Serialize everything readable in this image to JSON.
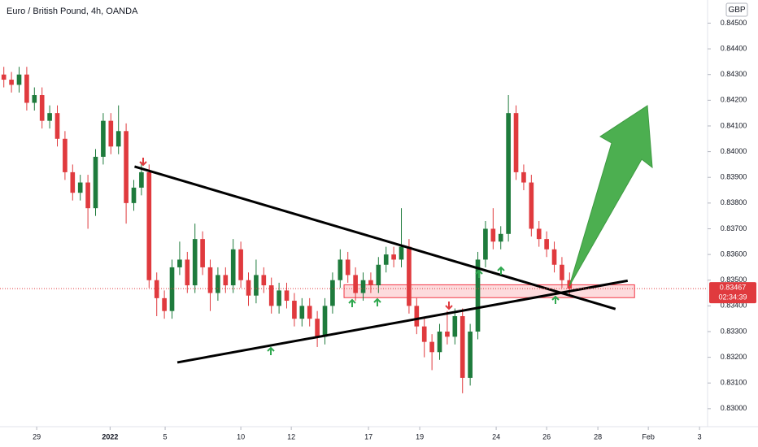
{
  "chart_data": {
    "type": "candlestick",
    "title": "Euro / British Pound, 4h, OANDA",
    "currency": "GBP",
    "last_price": 0.83467,
    "countdown": "02:34:39",
    "up_color": "#1e7b3c",
    "down_color": "#e03a3e",
    "xlim": [
      -0.5,
      92.05
    ],
    "ylim": [
      0.8293,
      0.8459
    ],
    "xticks": [
      {
        "value": 4.3,
        "label": "29"
      },
      {
        "value": 13.9,
        "label": "2022"
      },
      {
        "value": 21.1,
        "label": "5"
      },
      {
        "value": 31,
        "label": "10"
      },
      {
        "value": 37.6,
        "label": "12"
      },
      {
        "value": 47.7,
        "label": "17"
      },
      {
        "value": 54.4,
        "label": "19"
      },
      {
        "value": 64.4,
        "label": "24"
      },
      {
        "value": 71,
        "label": "26"
      },
      {
        "value": 77.7,
        "label": "28"
      },
      {
        "value": 84.3,
        "label": "Feb"
      },
      {
        "value": 91,
        "label": "3"
      }
    ],
    "yticks": [
      {
        "value": 0.83,
        "label": "0.83000"
      },
      {
        "value": 0.831,
        "label": "0.83100"
      },
      {
        "value": 0.832,
        "label": "0.83200"
      },
      {
        "value": 0.833,
        "label": "0.83300"
      },
      {
        "value": 0.834,
        "label": "0.83400"
      },
      {
        "value": 0.835,
        "label": "0.83500"
      },
      {
        "value": 0.836,
        "label": "0.83600"
      },
      {
        "value": 0.837,
        "label": "0.83700"
      },
      {
        "value": 0.838,
        "label": "0.83800"
      },
      {
        "value": 0.839,
        "label": "0.83900"
      },
      {
        "value": 0.84,
        "label": "0.84000"
      },
      {
        "value": 0.841,
        "label": "0.84100"
      },
      {
        "value": 0.842,
        "label": "0.84200"
      },
      {
        "value": 0.843,
        "label": "0.84300"
      },
      {
        "value": 0.844,
        "label": "0.84400"
      },
      {
        "value": 0.845,
        "label": "0.84500"
      }
    ],
    "open": [
      0.843,
      0.8428,
      0.8426,
      0.843,
      0.8419,
      0.8422,
      0.8412,
      0.8415,
      0.8405,
      0.8392,
      0.8384,
      0.8388,
      0.8378,
      0.8398,
      0.8412,
      0.8402,
      0.8408,
      0.838,
      0.8386,
      0.8392,
      0.835,
      0.8343,
      0.8338,
      0.8355,
      0.8358,
      0.8348,
      0.8366,
      0.8355,
      0.8345,
      0.8352,
      0.8348,
      0.8362,
      0.835,
      0.8344,
      0.8352,
      0.8348,
      0.834,
      0.8346,
      0.8342,
      0.8335,
      0.834,
      0.8335,
      0.8328,
      0.834,
      0.835,
      0.8358,
      0.8352,
      0.8345,
      0.835,
      0.8348,
      0.8356,
      0.836,
      0.8358,
      0.8363,
      0.834,
      0.8332,
      0.8326,
      0.8322,
      0.833,
      0.8328,
      0.8336,
      0.8312,
      0.833,
      0.8358,
      0.837,
      0.8365,
      0.8368,
      0.8415,
      0.8392,
      0.8388,
      0.837,
      0.8366,
      0.8362,
      0.8356,
      0.835
    ],
    "high": [
      0.8433,
      0.8431,
      0.8433,
      0.8433,
      0.8425,
      0.8425,
      0.8418,
      0.8418,
      0.8408,
      0.8395,
      0.8391,
      0.8391,
      0.8401,
      0.8415,
      0.8415,
      0.8418,
      0.8411,
      0.8389,
      0.8396,
      0.8395,
      0.8353,
      0.8346,
      0.8358,
      0.8365,
      0.8361,
      0.8372,
      0.8369,
      0.8358,
      0.8355,
      0.8355,
      0.8366,
      0.8365,
      0.8353,
      0.8358,
      0.8355,
      0.8351,
      0.8349,
      0.8349,
      0.8345,
      0.8343,
      0.8343,
      0.8338,
      0.8343,
      0.8353,
      0.8362,
      0.8361,
      0.8355,
      0.8353,
      0.8353,
      0.8359,
      0.8363,
      0.8363,
      0.8378,
      0.8366,
      0.8343,
      0.8335,
      0.8329,
      0.8333,
      0.8338,
      0.8339,
      0.8339,
      0.8333,
      0.8361,
      0.8373,
      0.8378,
      0.8371,
      0.8422,
      0.8418,
      0.8395,
      0.8391,
      0.8373,
      0.8369,
      0.8365,
      0.8359,
      0.8353
    ],
    "low": [
      0.8425,
      0.8423,
      0.8423,
      0.8416,
      0.8416,
      0.8409,
      0.8409,
      0.8402,
      0.8389,
      0.8381,
      0.8381,
      0.837,
      0.8375,
      0.8395,
      0.8399,
      0.8399,
      0.8372,
      0.8377,
      0.8383,
      0.8347,
      0.8336,
      0.8335,
      0.8335,
      0.8352,
      0.8345,
      0.8345,
      0.8352,
      0.8338,
      0.8342,
      0.8345,
      0.8345,
      0.8347,
      0.834,
      0.8341,
      0.8345,
      0.8337,
      0.8337,
      0.8339,
      0.8332,
      0.8332,
      0.8332,
      0.8324,
      0.8325,
      0.8337,
      0.8347,
      0.8349,
      0.8342,
      0.8342,
      0.8345,
      0.8345,
      0.8353,
      0.8355,
      0.8355,
      0.8337,
      0.8329,
      0.832,
      0.8315,
      0.8319,
      0.8325,
      0.8325,
      0.8306,
      0.8309,
      0.8327,
      0.8355,
      0.8362,
      0.8362,
      0.8365,
      0.8389,
      0.8385,
      0.8367,
      0.8363,
      0.8359,
      0.8353,
      0.8347,
      0.8344
    ],
    "close": [
      0.8428,
      0.8426,
      0.843,
      0.8419,
      0.8422,
      0.8412,
      0.8415,
      0.8405,
      0.8392,
      0.8384,
      0.8388,
      0.8378,
      0.8398,
      0.8412,
      0.8402,
      0.8408,
      0.838,
      0.8386,
      0.8392,
      0.835,
      0.8343,
      0.8338,
      0.8355,
      0.8358,
      0.8348,
      0.8366,
      0.8355,
      0.8345,
      0.8352,
      0.8348,
      0.8362,
      0.835,
      0.8344,
      0.8352,
      0.8348,
      0.834,
      0.8346,
      0.8342,
      0.8335,
      0.834,
      0.8335,
      0.8328,
      0.834,
      0.835,
      0.8358,
      0.8352,
      0.8345,
      0.835,
      0.8348,
      0.8356,
      0.836,
      0.8358,
      0.8363,
      0.834,
      0.8332,
      0.8326,
      0.8322,
      0.833,
      0.8328,
      0.8336,
      0.8312,
      0.833,
      0.8358,
      0.837,
      0.8365,
      0.8368,
      0.8415,
      0.8392,
      0.8388,
      0.837,
      0.8366,
      0.8362,
      0.8356,
      0.835,
      0.83467
    ],
    "trendlines": [
      {
        "x": [
          17.1,
          80.0
        ],
        "y": [
          0.83942,
          0.83388
        ],
        "color": "#000000"
      },
      {
        "x": [
          22.7,
          81.6
        ],
        "y": [
          0.8318,
          0.83498
        ],
        "color": "#000000"
      }
    ],
    "zone": {
      "x": [
        44.5,
        82.5
      ],
      "y": [
        0.83432,
        0.83482
      ],
      "color": "#f23645"
    }
  }
}
